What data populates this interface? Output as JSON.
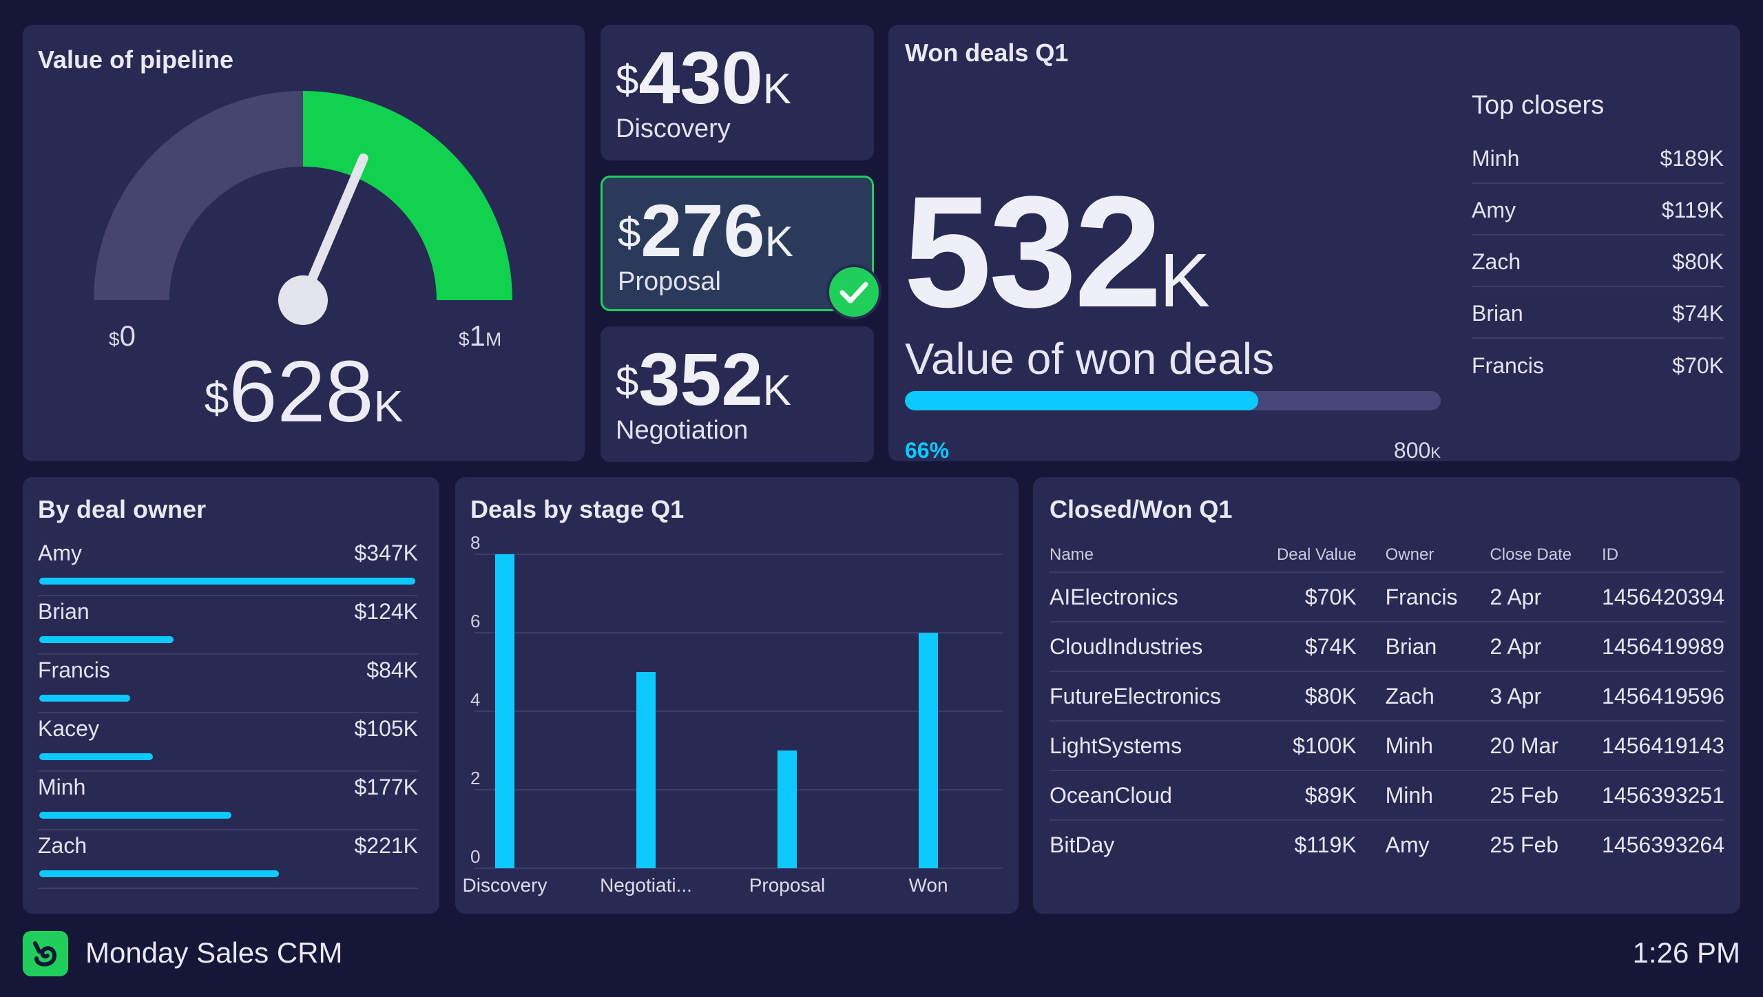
{
  "pipeline": {
    "title": "Value of pipeline",
    "gauge_min_symbol": "$",
    "gauge_min": "0",
    "gauge_max_symbol": "$",
    "gauge_max": "1",
    "gauge_max_unit": "M",
    "value_symbol": "$",
    "value": "628",
    "value_unit": "K",
    "gauge_fraction": 0.628
  },
  "stages": [
    {
      "symbol": "$",
      "value": "430",
      "unit": "K",
      "label": "Discovery"
    },
    {
      "symbol": "$",
      "value": "276",
      "unit": "K",
      "label": "Proposal",
      "checked": true
    },
    {
      "symbol": "$",
      "value": "352",
      "unit": "K",
      "label": "Negotiation"
    }
  ],
  "won": {
    "title": "Won deals Q1",
    "value": "532",
    "value_unit": "K",
    "label": "Value of won deals",
    "progress_pct": "66%",
    "progress_fraction": 0.66,
    "target": "800",
    "target_unit": "K",
    "closers_title": "Top closers",
    "closers": [
      {
        "name": "Minh",
        "value": "$189K"
      },
      {
        "name": "Amy",
        "value": "$119K"
      },
      {
        "name": "Zach",
        "value": "$80K"
      },
      {
        "name": "Brian",
        "value": "$74K"
      },
      {
        "name": "Francis",
        "value": "$70K"
      }
    ]
  },
  "by_owner": {
    "title": "By deal owner",
    "rows": [
      {
        "name": "Amy",
        "value": "$347K",
        "amount": 347
      },
      {
        "name": "Brian",
        "value": "$124K",
        "amount": 124
      },
      {
        "name": "Francis",
        "value": "$84K",
        "amount": 84
      },
      {
        "name": "Kacey",
        "value": "$105K",
        "amount": 105
      },
      {
        "name": "Minh",
        "value": "$177K",
        "amount": 177
      },
      {
        "name": "Zach",
        "value": "$221K",
        "amount": 221
      }
    ]
  },
  "chart_data": {
    "type": "bar",
    "title": "Deals by stage Q1",
    "categories": [
      "Discovery",
      "Negotiati...",
      "Proposal",
      "Won"
    ],
    "values": [
      8,
      5,
      3,
      6
    ],
    "yticks": [
      0,
      2,
      4,
      6,
      8
    ],
    "ylim": [
      0,
      8
    ],
    "grid": true,
    "xlabel": "",
    "ylabel": "",
    "bar_color": "#0ccaff"
  },
  "closed": {
    "title": "Closed/Won Q1",
    "columns": [
      "Name",
      "Deal Value",
      "Owner",
      "Close Date",
      "ID"
    ],
    "rows": [
      [
        "AIElectronics",
        "$70K",
        "Francis",
        "2 Apr",
        "1456420394"
      ],
      [
        "CloudIndustries",
        "$74K",
        "Brian",
        "2 Apr",
        "1456419989"
      ],
      [
        "FutureElectronics",
        "$80K",
        "Zach",
        "3 Apr",
        "1456419596"
      ],
      [
        "LightSystems",
        "$100K",
        "Minh",
        "20 Mar",
        "1456419143"
      ],
      [
        "OceanCloud",
        "$89K",
        "Minh",
        "25 Feb",
        "1456393251"
      ],
      [
        "BitDay",
        "$119K",
        "Amy",
        "25 Feb",
        "1456393264"
      ]
    ]
  },
  "footer": {
    "app_name": "Monday Sales CRM",
    "time": "1:26 PM",
    "logo_icon": "monday-logo-icon"
  },
  "colors": {
    "background": "#161638",
    "card": "#282a53",
    "accent_blue": "#0ccaff",
    "accent_green": "#1fcf5a",
    "gauge_track": "#454570"
  }
}
